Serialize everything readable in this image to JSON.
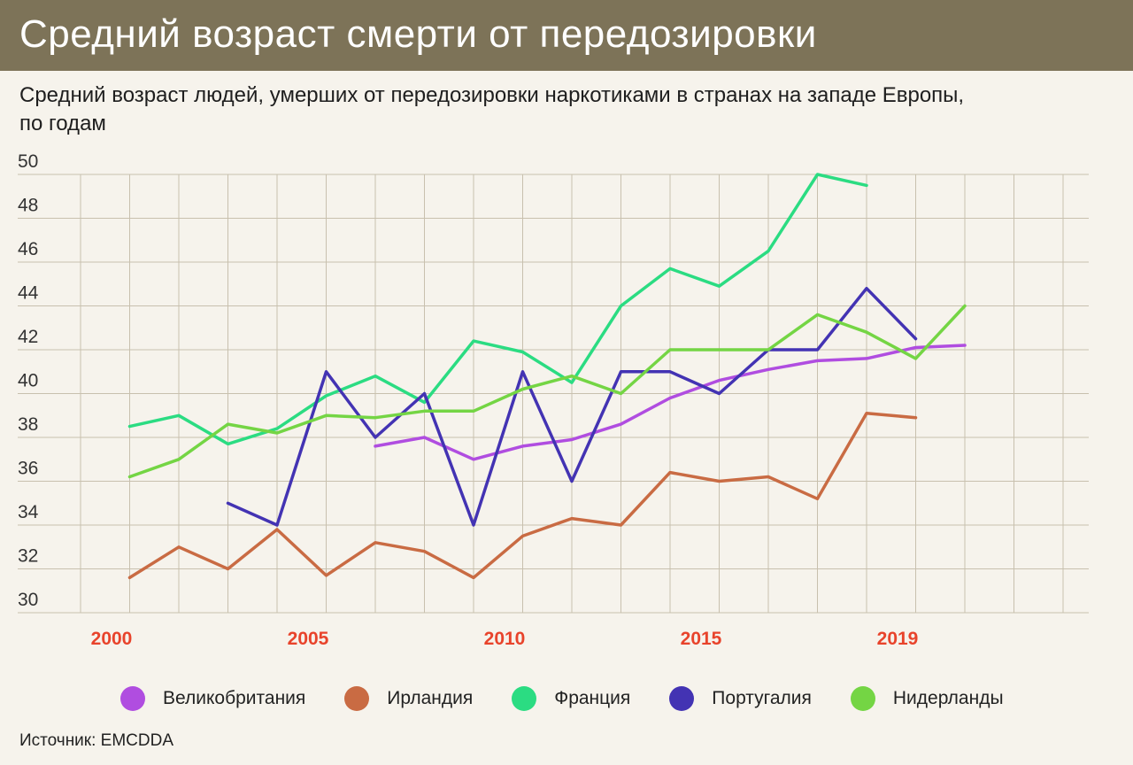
{
  "header": {
    "title": "Средний возраст смерти от передозировки",
    "subtitle": "Средний возраст людей, умерших от передозировки наркотиками в странах на западе Европы, по годам"
  },
  "source": "Источник: EMCDDA",
  "chart_data": {
    "type": "line",
    "title": "Средний возраст смерти от передозировки",
    "subtitle": "Средний возраст людей, умерших от передозировки наркотиками в странах на западе Европы, по годам",
    "xlabel": "",
    "ylabel": "",
    "x": [
      2000,
      2001,
      2002,
      2003,
      2004,
      2005,
      2006,
      2007,
      2008,
      2009,
      2010,
      2011,
      2012,
      2013,
      2014,
      2015,
      2016,
      2017,
      2018
    ],
    "xlim": [
      1999,
      2019
    ],
    "ylim": [
      30,
      50
    ],
    "yticks": [
      30,
      32,
      34,
      36,
      38,
      40,
      42,
      44,
      46,
      48,
      50
    ],
    "xtick_labels": [
      {
        "x": 1999,
        "label": "2000"
      },
      {
        "x": 2003,
        "label": "2005"
      },
      {
        "x": 2007,
        "label": "2010"
      },
      {
        "x": 2011,
        "label": "2015"
      },
      {
        "x": 2015,
        "label": "2019"
      }
    ],
    "xtick_color": "#e8432b",
    "grid": true,
    "legend_position": "bottom",
    "series": [
      {
        "name": "Великобритания",
        "color": "#b04de0",
        "values": [
          null,
          null,
          null,
          null,
          null,
          37.6,
          38.0,
          37.0,
          37.6,
          37.9,
          38.6,
          39.8,
          40.6,
          41.1,
          41.5,
          41.6,
          42.1,
          42.2,
          null
        ]
      },
      {
        "name": "Ирландия",
        "color": "#c96b43",
        "values": [
          31.6,
          33.0,
          32.0,
          33.8,
          31.7,
          33.2,
          32.8,
          31.6,
          33.5,
          34.3,
          34.0,
          36.4,
          36.0,
          36.2,
          35.2,
          39.1,
          38.9,
          null,
          null
        ]
      },
      {
        "name": "Франция",
        "color": "#2bdc82",
        "values": [
          38.5,
          39.0,
          37.7,
          38.4,
          39.9,
          40.8,
          39.6,
          42.4,
          41.9,
          40.5,
          44.0,
          45.7,
          44.9,
          46.5,
          50.0,
          49.5,
          null,
          null,
          null
        ]
      },
      {
        "name": "Португалия",
        "color": "#4333b3",
        "values": [
          null,
          null,
          35.0,
          34.0,
          41.0,
          38.0,
          40.0,
          34.0,
          41.0,
          36.0,
          41.0,
          41.0,
          40.0,
          42.0,
          42.0,
          44.8,
          42.5,
          null,
          null
        ]
      },
      {
        "name": "Нидерланды",
        "color": "#74d544",
        "values": [
          36.2,
          37.0,
          38.6,
          38.2,
          39.0,
          38.9,
          39.2,
          39.2,
          40.2,
          40.8,
          40.0,
          42.0,
          42.0,
          42.0,
          43.6,
          42.8,
          41.6,
          44.0,
          null
        ]
      }
    ]
  }
}
